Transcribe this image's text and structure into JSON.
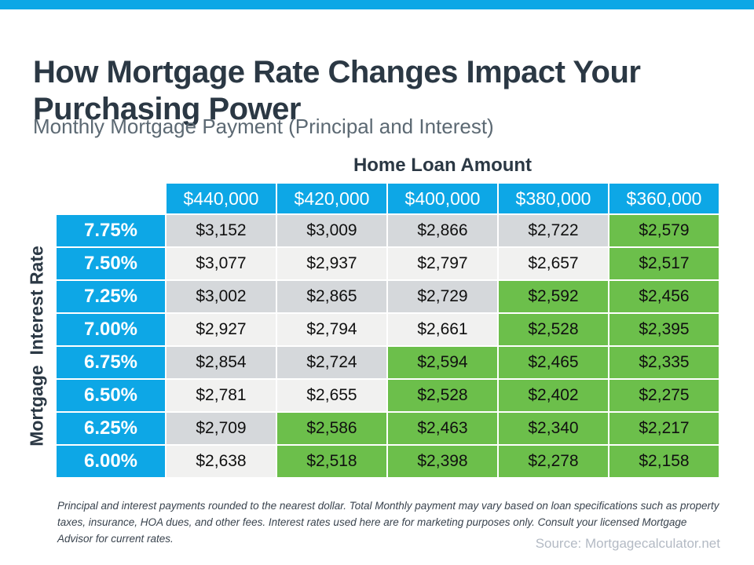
{
  "page": {
    "background": "#FFFFFF",
    "top_bar_color": "#0DA7E6"
  },
  "header": {
    "title": "How Mortgage Rate Changes Impact Your Purchasing Power",
    "subtitle": "Monthly Mortgage Payment (Principal and Interest)"
  },
  "table": {
    "column_group_label": "Home Loan Amount",
    "row_group_label": "Mortgage  Interest Rate",
    "columns": [
      "$440,000",
      "$420,000",
      "$400,000",
      "$380,000",
      "$360,000"
    ],
    "rows": [
      {
        "rate": "7.75%",
        "values": [
          "$3,152",
          "$3,009",
          "$2,866",
          "$2,722",
          "$2,579"
        ],
        "green_from_col": 4
      },
      {
        "rate": "7.50%",
        "values": [
          "$3,077",
          "$2,937",
          "$2,797",
          "$2,657",
          "$2,517"
        ],
        "green_from_col": 4
      },
      {
        "rate": "7.25%",
        "values": [
          "$3,002",
          "$2,865",
          "$2,729",
          "$2,592",
          "$2,456"
        ],
        "green_from_col": 3
      },
      {
        "rate": "7.00%",
        "values": [
          "$2,927",
          "$2,794",
          "$2,661",
          "$2,528",
          "$2,395"
        ],
        "green_from_col": 3
      },
      {
        "rate": "6.75%",
        "values": [
          "$2,854",
          "$2,724",
          "$2,594",
          "$2,465",
          "$2,335"
        ],
        "green_from_col": 2
      },
      {
        "rate": "6.50%",
        "values": [
          "$2,781",
          "$2,655",
          "$2,528",
          "$2,402",
          "$2,275"
        ],
        "green_from_col": 2
      },
      {
        "rate": "6.25%",
        "values": [
          "$2,709",
          "$2,586",
          "$2,463",
          "$2,340",
          "$2,217"
        ],
        "green_from_col": 1
      },
      {
        "rate": "6.00%",
        "values": [
          "$2,638",
          "$2,518",
          "$2,398",
          "$2,278",
          "$2,158"
        ],
        "green_from_col": 1
      }
    ]
  },
  "chart_data": {
    "type": "table",
    "title": "How Mortgage Rate Changes Impact Your Purchasing Power",
    "subtitle": "Monthly Mortgage Payment (Principal and Interest)",
    "column_header": "Home Loan Amount",
    "row_header": "Mortgage Interest Rate",
    "categories": [
      "$440,000",
      "$420,000",
      "$400,000",
      "$380,000",
      "$360,000"
    ],
    "series": [
      {
        "name": "7.75%",
        "values": [
          3152,
          3009,
          2866,
          2722,
          2579
        ]
      },
      {
        "name": "7.50%",
        "values": [
          3077,
          2937,
          2797,
          2657,
          2517
        ]
      },
      {
        "name": "7.25%",
        "values": [
          3002,
          2865,
          2729,
          2592,
          2456
        ]
      },
      {
        "name": "7.00%",
        "values": [
          2927,
          2794,
          2661,
          2528,
          2395
        ]
      },
      {
        "name": "6.75%",
        "values": [
          2854,
          2724,
          2594,
          2465,
          2335
        ]
      },
      {
        "name": "6.50%",
        "values": [
          2781,
          2655,
          2528,
          2402,
          2275
        ]
      },
      {
        "name": "6.25%",
        "values": [
          2709,
          2586,
          2463,
          2340,
          2217
        ]
      },
      {
        "name": "6.00%",
        "values": [
          2638,
          2518,
          2398,
          2278,
          2158
        ]
      }
    ],
    "highlight": "green cells mark lower monthly payments, staircase pattern from bottom-left toward top-right"
  },
  "footnote": "Principal and interest payments rounded to the nearest dollar. Total Monthly payment may vary based on loan specifications such as property taxes,  insurance, HOA dues, and other fees. Interest rates used here are for marketing purposes only. Consult your licensed Mortgage Advisor for current rates.",
  "source": "Source: Mortgagecalculator.net",
  "colors": {
    "accent_blue": "#0DA7E6",
    "highlight_green": "#6CBF4B",
    "row_gray": "#D5D8DB",
    "row_light": "#F1F1F0",
    "title_text": "#2B3844"
  }
}
